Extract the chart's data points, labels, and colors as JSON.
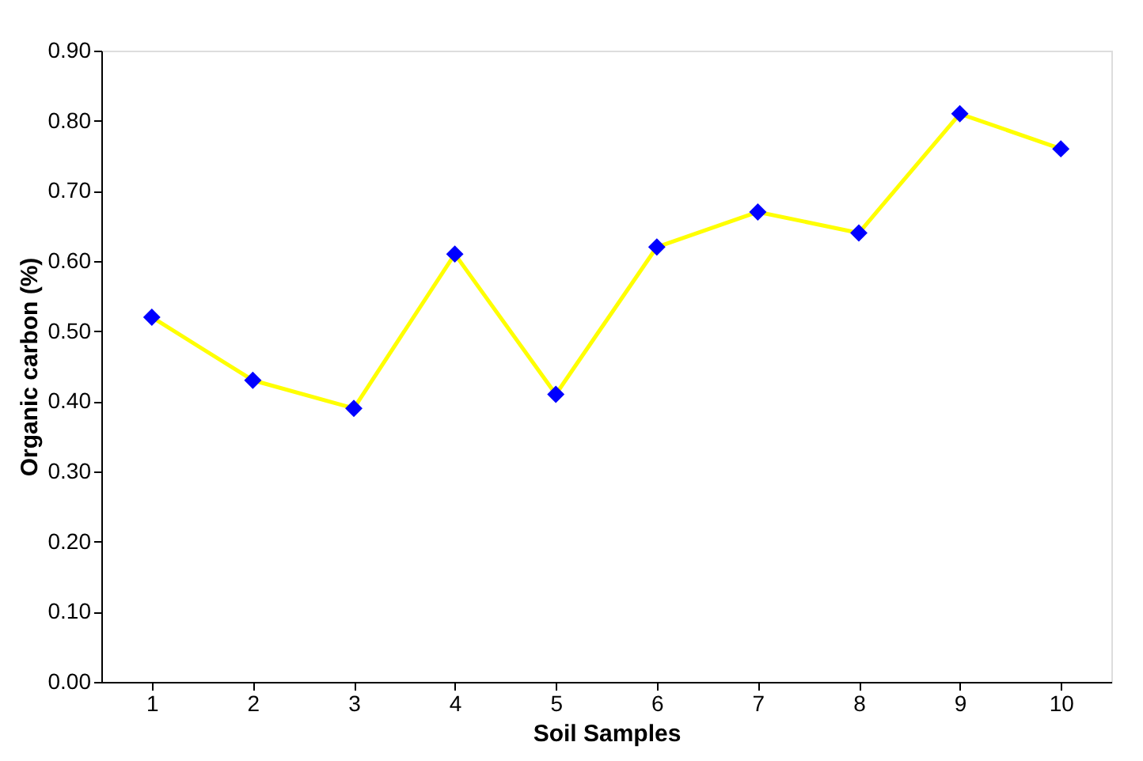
{
  "chart_data": {
    "type": "line",
    "xlabel": "Soil Samples",
    "ylabel": "Organic carbon (%)",
    "categories": [
      "1",
      "2",
      "3",
      "4",
      "5",
      "6",
      "7",
      "8",
      "9",
      "10"
    ],
    "series": [
      {
        "color": "#ffff00",
        "colors": [
          "#0000ff",
          "#0000ff",
          "#0000ff",
          "#0000ff",
          "#0000ff",
          "#0000ff",
          "#0000ff",
          "#0000ff",
          "#0000ff",
          "#0000ff"
        ],
        "values": [
          0.52,
          0.43,
          0.39,
          0.61,
          0.41,
          0.62,
          0.67,
          0.64,
          0.81,
          0.76
        ]
      }
    ],
    "ylim": [
      0,
      0.9
    ],
    "yticks": [
      {
        "value": 0,
        "label": "0.00"
      },
      {
        "value": 0.1,
        "label": "0.10"
      },
      {
        "value": 0.2,
        "label": "0.20"
      },
      {
        "value": 0.3,
        "label": "0.30"
      },
      {
        "value": 0.4,
        "label": "0.40"
      },
      {
        "value": 0.5,
        "label": "0.50"
      },
      {
        "value": 0.6,
        "label": "0.60"
      },
      {
        "value": 0.7,
        "label": "0.70"
      },
      {
        "value": 0.8,
        "label": "0.80"
      },
      {
        "value": 0.9,
        "label": "0.90"
      }
    ],
    "marker": "diamond",
    "line_style": "solid",
    "grid": false
  }
}
